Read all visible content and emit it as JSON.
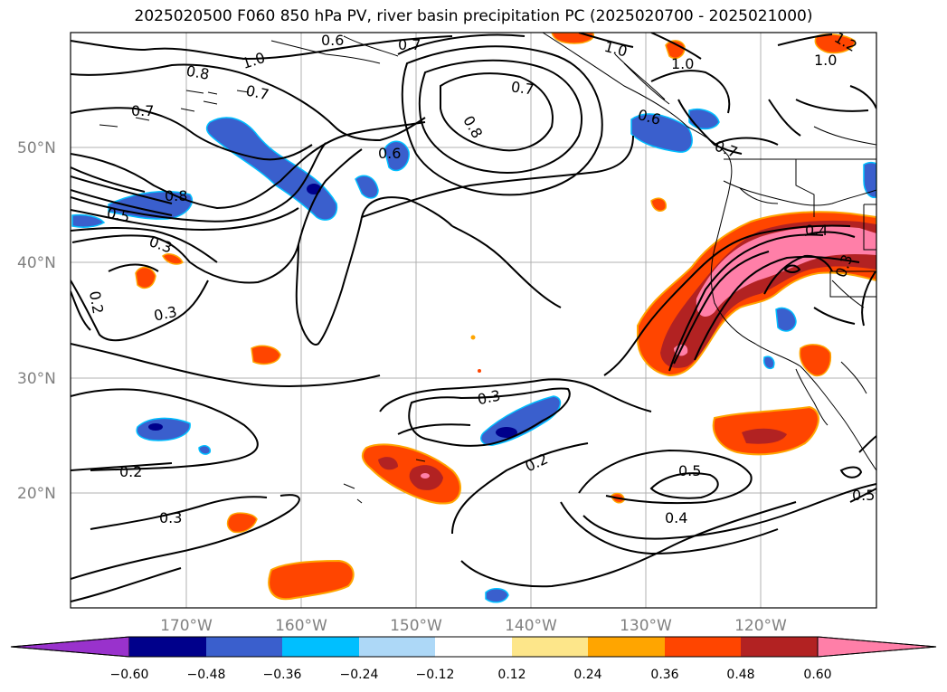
{
  "title": "2025020500 F060 850 hPa PV, river basin precipitation PC (2025020700 - 2025021000)",
  "lat_labels": [
    "50°N",
    "40°N",
    "30°N",
    "20°N"
  ],
  "lon_labels": [
    "170°W",
    "160°W",
    "150°W",
    "140°W",
    "130°W",
    "120°W"
  ],
  "contour_labels": [
    "1.0",
    "0.6",
    "0.7",
    "0.8",
    "0.7",
    "0.7",
    "0.8",
    "0.6",
    "0.8",
    "0.5",
    "0.3",
    "0.3",
    "0.2",
    "0.3",
    "0.2",
    "0.3",
    "0.2",
    "0.5",
    "0.4",
    "0.5",
    "0.4",
    "0.3",
    "1.0",
    "1.0",
    "1.0",
    "0.6",
    "0.7",
    "0.7",
    "1.2"
  ],
  "colorbar": {
    "ticks": [
      "−0.60",
      "−0.48",
      "−0.36",
      "−0.24",
      "−0.12",
      "0.12",
      "0.24",
      "0.36",
      "0.48",
      "0.60"
    ],
    "colors": [
      "#9932cc",
      "#00008b",
      "#3a5fcd",
      "#00bfff",
      "#add8f7",
      "#ffffff",
      "#fde68a",
      "#ffa500",
      "#ff4500",
      "#b22222",
      "#ff7fa8"
    ]
  }
}
